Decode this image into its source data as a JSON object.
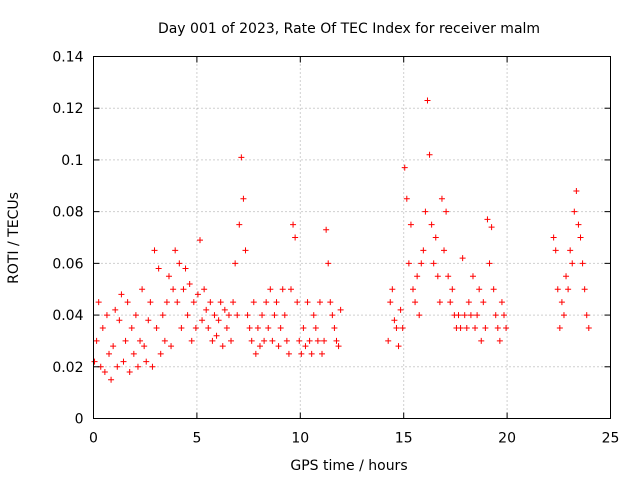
{
  "chart_data": {
    "type": "scatter",
    "title": "Day 001 of 2023, Rate Of TEC Index for receiver malm",
    "xlabel": "GPS time / hours",
    "ylabel": "ROTI / TECUs",
    "xlim": [
      0,
      25
    ],
    "ylim": [
      0,
      0.14
    ],
    "x_ticks": [
      "0",
      "5",
      "10",
      "15",
      "20",
      "25"
    ],
    "y_ticks": [
      "0",
      "0.02",
      "0.04",
      "0.06",
      "0.08",
      "0.1",
      "0.12",
      "0.14"
    ],
    "grid": true,
    "marker": "+",
    "color": "#ff0000",
    "series": [
      {
        "x": [
          0.05,
          0.15,
          0.25,
          0.35,
          0.45,
          0.55,
          0.65,
          0.75,
          0.85,
          0.95,
          1.05,
          1.15,
          1.25,
          1.35,
          1.45,
          1.55,
          1.65,
          1.75,
          1.85,
          1.95,
          2.05,
          2.15,
          2.25,
          2.35,
          2.45,
          2.55,
          2.65,
          2.75,
          2.85,
          2.95,
          3.05,
          3.15,
          3.25,
          3.35,
          3.45,
          3.55,
          3.65,
          3.75,
          3.85,
          3.95,
          4.05,
          4.15,
          4.25,
          4.35,
          4.45,
          4.55,
          4.65,
          4.75,
          4.85,
          4.95,
          5.05,
          5.15,
          5.25,
          5.35,
          5.45,
          5.55,
          5.65,
          5.75,
          5.85,
          5.95,
          6.05,
          6.15,
          6.25,
          6.35,
          6.45,
          6.55,
          6.65,
          6.75,
          6.85,
          6.95,
          7.05,
          7.15,
          7.25,
          7.35,
          7.45,
          7.55,
          7.65,
          7.75,
          7.85,
          7.95,
          8.05,
          8.15,
          8.25,
          8.35,
          8.45,
          8.55,
          8.65,
          8.75,
          8.85,
          8.95,
          9.05,
          9.15,
          9.25,
          9.35,
          9.45,
          9.55,
          9.65,
          9.75,
          9.85,
          9.95,
          10.05,
          10.15,
          10.25,
          10.35,
          10.45,
          10.55,
          10.65,
          10.75,
          10.85,
          10.95,
          11.05,
          11.15,
          11.25,
          11.35,
          11.45,
          11.55,
          11.65,
          11.75,
          11.85,
          11.95
        ],
        "y": [
          0.022,
          0.03,
          0.045,
          0.02,
          0.035,
          0.018,
          0.04,
          0.025,
          0.015,
          0.028,
          0.042,
          0.02,
          0.038,
          0.048,
          0.022,
          0.03,
          0.045,
          0.018,
          0.035,
          0.025,
          0.04,
          0.02,
          0.03,
          0.05,
          0.028,
          0.022,
          0.038,
          0.045,
          0.02,
          0.065,
          0.035,
          0.058,
          0.025,
          0.04,
          0.03,
          0.045,
          0.055,
          0.028,
          0.05,
          0.065,
          0.045,
          0.06,
          0.035,
          0.05,
          0.058,
          0.04,
          0.052,
          0.03,
          0.045,
          0.035,
          0.048,
          0.069,
          0.038,
          0.05,
          0.042,
          0.035,
          0.045,
          0.03,
          0.04,
          0.032,
          0.038,
          0.045,
          0.028,
          0.042,
          0.035,
          0.04,
          0.03,
          0.045,
          0.06,
          0.04,
          0.075,
          0.101,
          0.085,
          0.065,
          0.04,
          0.035,
          0.03,
          0.045,
          0.025,
          0.035,
          0.028,
          0.04,
          0.03,
          0.045,
          0.035,
          0.05,
          0.03,
          0.04,
          0.045,
          0.028,
          0.035,
          0.05,
          0.04,
          0.03,
          0.025,
          0.05,
          0.075,
          0.07,
          0.045,
          0.03,
          0.025,
          0.035,
          0.028,
          0.045,
          0.03,
          0.025,
          0.04,
          0.035,
          0.03,
          0.045,
          0.025,
          0.03,
          0.073,
          0.06,
          0.045,
          0.04,
          0.035,
          0.03,
          0.028,
          0.042
        ]
      },
      {
        "x": [
          14.25,
          14.35,
          14.45,
          14.55,
          14.65,
          14.75,
          14.85,
          14.95,
          15.05,
          15.15,
          15.25,
          15.35,
          15.45,
          15.55,
          15.65,
          15.75,
          15.85,
          15.95,
          16.05,
          16.15,
          16.25,
          16.35,
          16.45,
          16.55,
          16.65,
          16.75,
          16.85,
          16.95,
          17.05,
          17.15,
          17.25,
          17.35,
          17.45,
          17.55,
          17.65,
          17.75,
          17.85,
          17.95,
          18.05,
          18.15,
          18.25,
          18.35,
          18.45,
          18.55,
          18.65,
          18.75,
          18.85,
          18.95,
          19.05,
          19.15,
          19.25,
          19.35,
          19.45,
          19.55,
          19.65,
          19.75,
          19.85,
          19.95
        ],
        "y": [
          0.03,
          0.045,
          0.05,
          0.038,
          0.035,
          0.028,
          0.042,
          0.035,
          0.097,
          0.085,
          0.06,
          0.075,
          0.05,
          0.045,
          0.055,
          0.04,
          0.06,
          0.065,
          0.08,
          0.123,
          0.102,
          0.075,
          0.06,
          0.07,
          0.055,
          0.045,
          0.085,
          0.065,
          0.08,
          0.055,
          0.045,
          0.05,
          0.04,
          0.035,
          0.04,
          0.035,
          0.062,
          0.04,
          0.035,
          0.045,
          0.04,
          0.055,
          0.035,
          0.04,
          0.05,
          0.03,
          0.045,
          0.035,
          0.077,
          0.06,
          0.074,
          0.05,
          0.04,
          0.035,
          0.03,
          0.045,
          0.04,
          0.035
        ]
      },
      {
        "x": [
          22.25,
          22.35,
          22.45,
          22.55,
          22.65,
          22.75,
          22.85,
          22.95,
          23.05,
          23.15,
          23.25,
          23.35,
          23.45,
          23.55,
          23.65,
          23.75,
          23.85,
          23.95
        ],
        "y": [
          0.07,
          0.065,
          0.05,
          0.035,
          0.045,
          0.04,
          0.055,
          0.05,
          0.065,
          0.06,
          0.08,
          0.088,
          0.075,
          0.07,
          0.06,
          0.05,
          0.04,
          0.035
        ]
      }
    ]
  }
}
